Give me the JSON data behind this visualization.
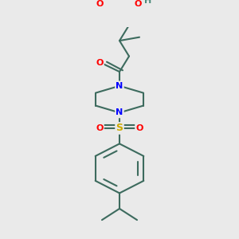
{
  "bg_color": "#eaeaea",
  "bond_color": "#3d6b5e",
  "bond_width": 1.5,
  "atom_colors": {
    "O": "#ff0000",
    "N": "#0000ff",
    "S": "#ccaa00",
    "H": "#4a8a7a",
    "C": "#3d6b5e"
  },
  "figsize": [
    3.0,
    3.0
  ],
  "dpi": 100
}
